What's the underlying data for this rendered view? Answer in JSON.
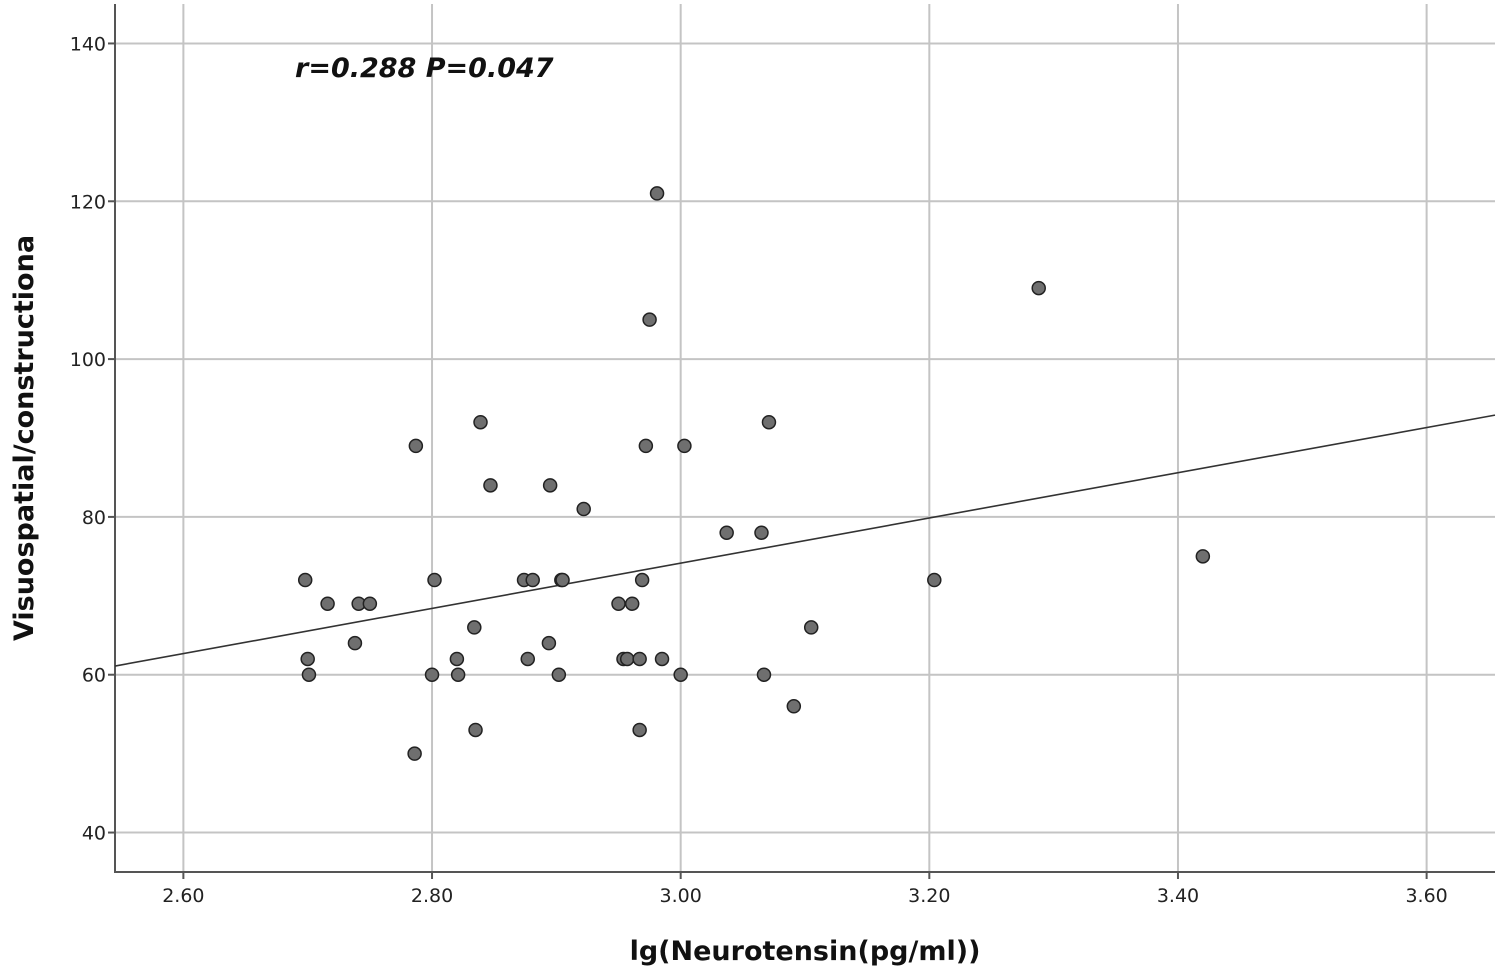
{
  "chart_data": {
    "type": "scatter",
    "title": "",
    "xlabel": "lg(Neurotensin(pg/ml))",
    "ylabel": "Visuospatial/constructiona",
    "annotation": "r=0.288 P=0.047",
    "xlim": [
      2.545,
      3.655
    ],
    "ylim": [
      35,
      145
    ],
    "x_ticks": [
      2.6,
      2.8,
      3.0,
      3.2,
      3.4,
      3.6
    ],
    "x_tick_labels": [
      "2.60",
      "2.80",
      "3.00",
      "3.20",
      "3.40",
      "3.60"
    ],
    "y_ticks": [
      40,
      60,
      80,
      100,
      120,
      140
    ],
    "y_tick_labels": [
      "40",
      "60",
      "80",
      "100",
      "120",
      "140"
    ],
    "grid": true,
    "fit_line": {
      "x": [
        2.545,
        3.655
      ],
      "y": [
        61.1,
        92.9
      ]
    },
    "colors": {
      "point_fill": "#6f6f6f",
      "point_edge": "#222222",
      "grid": "#c4c4c4",
      "fit_line": "#333333"
    },
    "points": [
      {
        "x": 2.698,
        "y": 72
      },
      {
        "x": 2.7,
        "y": 62
      },
      {
        "x": 2.701,
        "y": 60
      },
      {
        "x": 2.716,
        "y": 69
      },
      {
        "x": 2.738,
        "y": 64
      },
      {
        "x": 2.741,
        "y": 69
      },
      {
        "x": 2.75,
        "y": 69
      },
      {
        "x": 2.787,
        "y": 89
      },
      {
        "x": 2.786,
        "y": 50
      },
      {
        "x": 2.8,
        "y": 60
      },
      {
        "x": 2.802,
        "y": 72
      },
      {
        "x": 2.82,
        "y": 62
      },
      {
        "x": 2.821,
        "y": 60
      },
      {
        "x": 2.834,
        "y": 66
      },
      {
        "x": 2.835,
        "y": 53
      },
      {
        "x": 2.839,
        "y": 92
      },
      {
        "x": 2.847,
        "y": 84
      },
      {
        "x": 2.874,
        "y": 72
      },
      {
        "x": 2.877,
        "y": 62
      },
      {
        "x": 2.881,
        "y": 72
      },
      {
        "x": 2.894,
        "y": 64
      },
      {
        "x": 2.895,
        "y": 84
      },
      {
        "x": 2.902,
        "y": 60
      },
      {
        "x": 2.904,
        "y": 72
      },
      {
        "x": 2.905,
        "y": 72
      },
      {
        "x": 2.922,
        "y": 81
      },
      {
        "x": 2.95,
        "y": 69
      },
      {
        "x": 2.954,
        "y": 62
      },
      {
        "x": 2.957,
        "y": 62
      },
      {
        "x": 2.961,
        "y": 69
      },
      {
        "x": 2.967,
        "y": 62
      },
      {
        "x": 2.967,
        "y": 53
      },
      {
        "x": 2.969,
        "y": 72
      },
      {
        "x": 2.972,
        "y": 89
      },
      {
        "x": 2.975,
        "y": 105
      },
      {
        "x": 2.981,
        "y": 121
      },
      {
        "x": 2.985,
        "y": 62
      },
      {
        "x": 3.0,
        "y": 60
      },
      {
        "x": 3.003,
        "y": 89
      },
      {
        "x": 3.037,
        "y": 78
      },
      {
        "x": 3.065,
        "y": 78
      },
      {
        "x": 3.067,
        "y": 60
      },
      {
        "x": 3.071,
        "y": 92
      },
      {
        "x": 3.091,
        "y": 56
      },
      {
        "x": 3.105,
        "y": 66
      },
      {
        "x": 3.204,
        "y": 72
      },
      {
        "x": 3.288,
        "y": 109
      },
      {
        "x": 3.42,
        "y": 75
      }
    ]
  }
}
